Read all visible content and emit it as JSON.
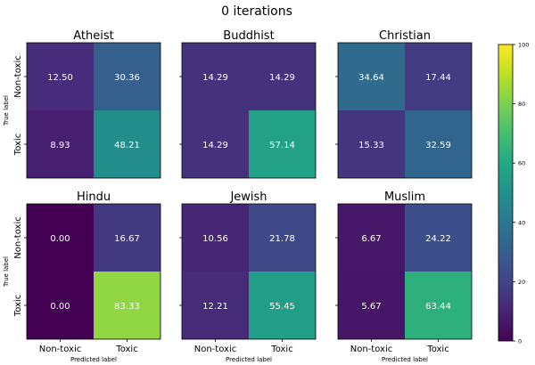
{
  "chart_data": {
    "type": "heatmap",
    "title": "0 iterations",
    "xlabel": "Predicted label",
    "ylabel": "True label",
    "x_categories": [
      "Non-toxic",
      "Toxic"
    ],
    "y_categories": [
      "Non-toxic",
      "Toxic"
    ],
    "colormap": "viridis",
    "vmin": 0,
    "vmax": 100,
    "colorbar_ticks": [
      "0",
      "20",
      "40",
      "60",
      "80",
      "100"
    ],
    "panels": [
      {
        "name": "Atheist",
        "matrix": [
          [
            12.5,
            30.36
          ],
          [
            8.93,
            48.21
          ]
        ],
        "labels": [
          [
            "12.50",
            "30.36"
          ],
          [
            "8.93",
            "48.21"
          ]
        ]
      },
      {
        "name": "Buddhist",
        "matrix": [
          [
            14.29,
            14.29
          ],
          [
            14.29,
            57.14
          ]
        ],
        "labels": [
          [
            "14.29",
            "14.29"
          ],
          [
            "14.29",
            "57.14"
          ]
        ]
      },
      {
        "name": "Christian",
        "matrix": [
          [
            34.64,
            17.44
          ],
          [
            15.33,
            32.59
          ]
        ],
        "labels": [
          [
            "34.64",
            "17.44"
          ],
          [
            "15.33",
            "32.59"
          ]
        ]
      },
      {
        "name": "Hindu",
        "matrix": [
          [
            0.0,
            16.67
          ],
          [
            0.0,
            83.33
          ]
        ],
        "labels": [
          [
            "0.00",
            "16.67"
          ],
          [
            "0.00",
            "83.33"
          ]
        ]
      },
      {
        "name": "Jewish",
        "matrix": [
          [
            10.56,
            21.78
          ],
          [
            12.21,
            55.45
          ]
        ],
        "labels": [
          [
            "10.56",
            "21.78"
          ],
          [
            "12.21",
            "55.45"
          ]
        ]
      },
      {
        "name": "Muslim",
        "matrix": [
          [
            6.67,
            24.22
          ],
          [
            5.67,
            63.44
          ]
        ],
        "labels": [
          [
            "6.67",
            "24.22"
          ],
          [
            "5.67",
            "63.44"
          ]
        ]
      }
    ]
  }
}
